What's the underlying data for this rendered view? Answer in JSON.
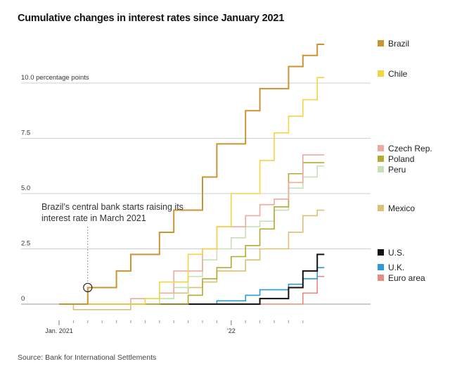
{
  "title": "Cumulative changes in interest rates since January 2021",
  "source": "Source: Bank for International Settlements",
  "chart_data": {
    "type": "line",
    "step": true,
    "y_unit": "percentage points",
    "ylim": [
      -0.35,
      11.8
    ],
    "yticks": [
      {
        "value": 0,
        "label": "0"
      },
      {
        "value": 2.5,
        "label": "2.5"
      },
      {
        "value": 5,
        "label": "5.0"
      },
      {
        "value": 7.5,
        "label": "7.5"
      },
      {
        "value": 10,
        "label": "10.0 percentage points"
      }
    ],
    "x_range": [
      "2020-12",
      "2022-07"
    ],
    "x_labels": [
      {
        "x": "2021-01",
        "label": "Jan. 2021"
      },
      {
        "x": "2022-01",
        "label": "’22"
      }
    ],
    "x_minor_ticks": [
      "2021-02",
      "2021-03",
      "2021-04",
      "2021-05",
      "2021-06",
      "2021-07",
      "2021-08",
      "2021-09",
      "2021-10",
      "2021-11",
      "2021-12",
      "2022-02",
      "2022-03",
      "2022-04",
      "2022-05",
      "2022-06"
    ],
    "grid": "horizontal",
    "legend": "right",
    "annotation": {
      "lines": [
        "Brazil’s central bank starts raising its",
        "interest rate in March 2021"
      ],
      "x": "2021-03",
      "y": 0.75
    },
    "series": [
      {
        "name": "Brazil",
        "color": "#cc9335",
        "width": 2,
        "points": [
          [
            "2021-01",
            0
          ],
          [
            "2021-03",
            0.75
          ],
          [
            "2021-05",
            1.5
          ],
          [
            "2021-06",
            2.25
          ],
          [
            "2021-08",
            3.25
          ],
          [
            "2021-09",
            4.25
          ],
          [
            "2021-11",
            5.75
          ],
          [
            "2021-12",
            7.25
          ],
          [
            "2022-02",
            8.75
          ],
          [
            "2022-03",
            9.75
          ],
          [
            "2022-05",
            10.75
          ],
          [
            "2022-06",
            11.25
          ],
          [
            "2022-07",
            11.75
          ]
        ]
      },
      {
        "name": "Chile",
        "color": "#f5d441",
        "width": 1.6,
        "points": [
          [
            "2021-01",
            0
          ],
          [
            "2021-07",
            0.25
          ],
          [
            "2021-08",
            1.0
          ],
          [
            "2021-10",
            2.25
          ],
          [
            "2021-11",
            2.5
          ],
          [
            "2021-12",
            3.5
          ],
          [
            "2022-01",
            5.0
          ],
          [
            "2022-03",
            6.5
          ],
          [
            "2022-04",
            7.75
          ],
          [
            "2022-05",
            8.5
          ],
          [
            "2022-06",
            9.25
          ],
          [
            "2022-07",
            10.25
          ],
          [
            "2022-07",
            10.25
          ]
        ]
      },
      {
        "name": "Czech Rep.",
        "color": "#eeaaa0",
        "width": 1.6,
        "points": [
          [
            "2021-01",
            0
          ],
          [
            "2021-06",
            0.25
          ],
          [
            "2021-08",
            0.5
          ],
          [
            "2021-09",
            1.5
          ],
          [
            "2021-11",
            2.5
          ],
          [
            "2021-12",
            3.5
          ],
          [
            "2022-02",
            4.0
          ],
          [
            "2022-03",
            4.5
          ],
          [
            "2022-04",
            4.75
          ],
          [
            "2022-05",
            5.5
          ],
          [
            "2022-06",
            6.75
          ],
          [
            "2022-07",
            6.75
          ]
        ]
      },
      {
        "name": "Poland",
        "color": "#b5ab32",
        "width": 1.6,
        "points": [
          [
            "2021-01",
            0
          ],
          [
            "2021-10",
            0.4
          ],
          [
            "2021-11",
            1.15
          ],
          [
            "2021-12",
            1.65
          ],
          [
            "2022-01",
            2.15
          ],
          [
            "2022-02",
            2.65
          ],
          [
            "2022-03",
            3.4
          ],
          [
            "2022-04",
            4.4
          ],
          [
            "2022-05",
            5.9
          ],
          [
            "2022-06",
            6.4
          ],
          [
            "2022-07",
            6.4
          ]
        ]
      },
      {
        "name": "Peru",
        "color": "#c8e0b5",
        "width": 1.6,
        "points": [
          [
            "2021-01",
            0
          ],
          [
            "2021-08",
            0.25
          ],
          [
            "2021-09",
            0.75
          ],
          [
            "2021-10",
            1.25
          ],
          [
            "2021-11",
            2.0
          ],
          [
            "2021-12",
            2.5
          ],
          [
            "2022-01",
            3.0
          ],
          [
            "2022-02",
            3.5
          ],
          [
            "2022-03",
            3.75
          ],
          [
            "2022-04",
            4.25
          ],
          [
            "2022-05",
            5.25
          ],
          [
            "2022-06",
            5.75
          ],
          [
            "2022-07",
            6.25
          ]
        ]
      },
      {
        "name": "Mexico",
        "color": "#d9c276",
        "width": 1.6,
        "points": [
          [
            "2021-01",
            0
          ],
          [
            "2021-02",
            -0.25
          ],
          [
            "2021-06",
            0
          ],
          [
            "2021-08",
            0.25
          ],
          [
            "2021-09",
            0.5
          ],
          [
            "2021-10",
            0.75
          ],
          [
            "2021-11",
            1.0
          ],
          [
            "2021-12",
            1.5
          ],
          [
            "2022-02",
            2.0
          ],
          [
            "2022-03",
            2.5
          ],
          [
            "2022-05",
            3.25
          ],
          [
            "2022-06",
            4.0
          ],
          [
            "2022-07",
            4.25
          ]
        ]
      },
      {
        "name": "U.S.",
        "color": "#111111",
        "width": 2,
        "points": [
          [
            "2021-01",
            0
          ],
          [
            "2022-03",
            0.25
          ],
          [
            "2022-05",
            0.75
          ],
          [
            "2022-06",
            1.5
          ],
          [
            "2022-07",
            2.25
          ]
        ]
      },
      {
        "name": "U.K.",
        "color": "#2b9bd6",
        "width": 1.6,
        "points": [
          [
            "2021-01",
            0
          ],
          [
            "2021-12",
            0.15
          ],
          [
            "2022-02",
            0.4
          ],
          [
            "2022-03",
            0.65
          ],
          [
            "2022-05",
            0.9
          ],
          [
            "2022-06",
            1.15
          ],
          [
            "2022-07",
            1.65
          ]
        ]
      },
      {
        "name": "Euro area",
        "color": "#e88a80",
        "width": 1.6,
        "points": [
          [
            "2021-01",
            0
          ],
          [
            "2022-06",
            0.5
          ],
          [
            "2022-07",
            1.25
          ]
        ]
      }
    ]
  }
}
